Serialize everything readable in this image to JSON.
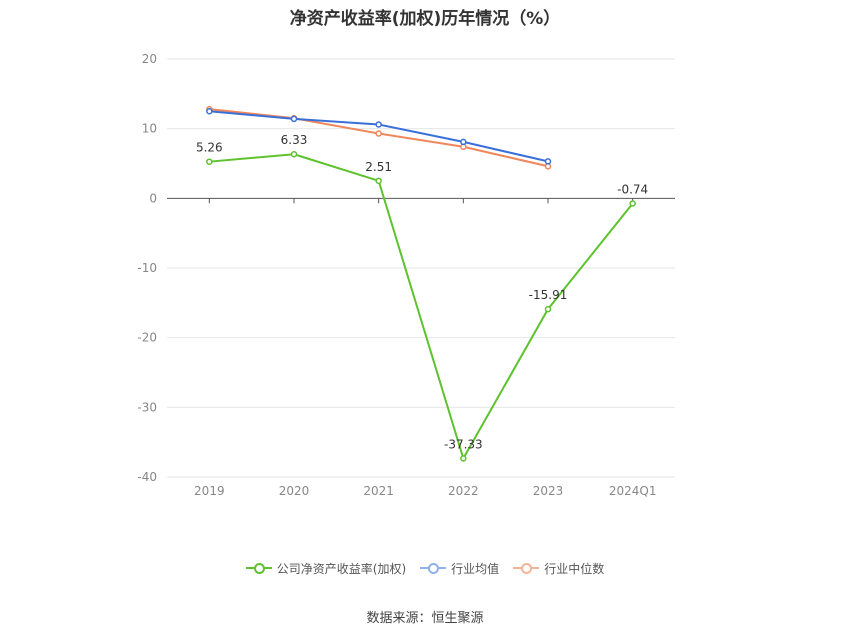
{
  "chart_data": {
    "type": "line",
    "title": "净资产收益率(加权)历年情况（%）",
    "categories": [
      "2019",
      "2020",
      "2021",
      "2022",
      "2023",
      "2024Q1"
    ],
    "ylim": [
      -40,
      20
    ],
    "yticks": [
      20,
      10,
      0,
      -10,
      -20,
      -30,
      -40
    ],
    "grid": true,
    "legend_position": "bottom",
    "series": [
      {
        "name": "公司净资产收益率(加权)",
        "color": "#5dc22d",
        "values": [
          5.26,
          6.33,
          2.51,
          -37.33,
          -15.91,
          -0.74
        ],
        "labels": [
          "5.26",
          "6.33",
          "2.51",
          "-37.33",
          "-15.91",
          "-0.74"
        ]
      },
      {
        "name": "行业均值",
        "color": "#3a6fd8",
        "values": [
          12.5,
          11.4,
          10.6,
          8.1,
          5.3,
          null
        ]
      },
      {
        "name": "行业中位数",
        "color": "#f0875a",
        "values": [
          12.8,
          11.5,
          9.3,
          7.4,
          4.6,
          null
        ]
      }
    ],
    "source": "数据来源：恒生聚源"
  }
}
